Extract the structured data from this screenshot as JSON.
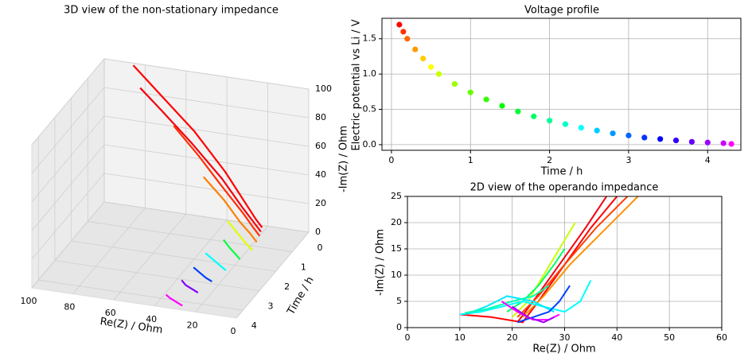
{
  "chart_data": [
    {
      "type": "line3d",
      "title": "3D view of the non-stationary impedance",
      "xlabel": "Re(Z) / Ohm",
      "ylabel": "Time / h",
      "zlabel": "-Im(Z) / Ohm",
      "xlim": [
        0,
        100
      ],
      "xticks": [
        0,
        20,
        40,
        60,
        80,
        100
      ],
      "ylim": [
        0,
        4.4
      ],
      "yticks": [
        0,
        1,
        2,
        3,
        4
      ],
      "zlim": [
        0,
        100
      ],
      "zticks": [
        0,
        20,
        40,
        60,
        80,
        100
      ],
      "series": [
        {
          "color": "#ff0000",
          "t": 0.1,
          "x": [
            22,
            25,
            30,
            40,
            55,
            70,
            85
          ],
          "z": [
            0,
            5,
            15,
            35,
            60,
            80,
            100
          ]
        },
        {
          "color": "#f20010",
          "t": 0.3,
          "x": [
            21,
            24,
            30,
            40,
            55,
            70,
            80
          ],
          "z": [
            0,
            5,
            15,
            33,
            55,
            75,
            88
          ]
        },
        {
          "color": "#ff3000",
          "t": 0.5,
          "x": [
            20,
            23,
            28,
            38,
            50,
            62
          ],
          "z": [
            0,
            5,
            14,
            30,
            50,
            68
          ]
        },
        {
          "color": "#ff8000",
          "t": 0.8,
          "x": [
            19,
            22,
            27,
            35,
            45
          ],
          "z": [
            0,
            5,
            12,
            26,
            40
          ]
        },
        {
          "color": "#e0ff00",
          "t": 1.2,
          "x": [
            18,
            21,
            25,
            30
          ],
          "z": [
            0,
            4,
            10,
            18
          ]
        },
        {
          "color": "#00ff40",
          "t": 1.7,
          "x": [
            20,
            22,
            25,
            28
          ],
          "z": [
            0,
            3,
            7,
            12
          ]
        },
        {
          "color": "#00ffff",
          "t": 2.3,
          "x": [
            22,
            24,
            28,
            32
          ],
          "z": [
            0,
            2,
            6,
            10
          ]
        },
        {
          "color": "#0040ff",
          "t": 2.9,
          "x": [
            24,
            27,
            30,
            33
          ],
          "z": [
            0,
            2,
            5,
            8
          ]
        },
        {
          "color": "#8000ff",
          "t": 3.5,
          "x": [
            26,
            29,
            32,
            34
          ],
          "z": [
            0,
            2,
            4,
            7
          ]
        },
        {
          "color": "#ff00ff",
          "t": 4.2,
          "x": [
            28,
            31,
            34,
            36
          ],
          "z": [
            0,
            2,
            4,
            6
          ]
        }
      ]
    },
    {
      "type": "scatter",
      "title": "Voltage profile",
      "xlabel": "Time / h",
      "ylabel": "Electric potential vs Li / V",
      "colormap": "hsv",
      "grid": true,
      "xlim": [
        -0.12,
        4.42
      ],
      "xticks": [
        0,
        1,
        2,
        3,
        4
      ],
      "ylim": [
        -0.08,
        1.79
      ],
      "yticks": [
        0.0,
        0.5,
        1.0,
        1.5
      ],
      "x": [
        0.1,
        0.15,
        0.2,
        0.3,
        0.4,
        0.5,
        0.6,
        0.8,
        1.0,
        1.2,
        1.4,
        1.6,
        1.8,
        2.0,
        2.2,
        2.4,
        2.6,
        2.8,
        3.0,
        3.2,
        3.4,
        3.6,
        3.8,
        4.0,
        4.2,
        4.3
      ],
      "values": [
        1.7,
        1.6,
        1.5,
        1.35,
        1.22,
        1.1,
        1.0,
        0.86,
        0.74,
        0.64,
        0.55,
        0.47,
        0.4,
        0.34,
        0.29,
        0.24,
        0.2,
        0.16,
        0.13,
        0.1,
        0.08,
        0.06,
        0.04,
        0.03,
        0.02,
        0.01
      ]
    },
    {
      "type": "line",
      "title": "2D view of the operando impedance",
      "xlabel": "Re(Z) / Ohm",
      "ylabel": "-Im(Z) / Ohm",
      "grid": true,
      "xlim": [
        0,
        60
      ],
      "xticks": [
        0,
        10,
        20,
        30,
        40,
        50,
        60
      ],
      "ylim": [
        0,
        25
      ],
      "yticks": [
        0,
        5,
        10,
        15,
        20,
        25
      ],
      "series": [
        {
          "color": "#ff0000",
          "x": [
            10,
            16,
            22,
            25,
            30,
            35,
            40
          ],
          "values": [
            2.5,
            2,
            1,
            5,
            12,
            19,
            25
          ]
        },
        {
          "color": "#f20010",
          "x": [
            21,
            24,
            29,
            34,
            38
          ],
          "values": [
            1,
            5,
            12,
            19,
            25
          ]
        },
        {
          "color": "#ff4000",
          "x": [
            21,
            25,
            30,
            36,
            42
          ],
          "values": [
            2,
            6,
            12,
            19,
            25
          ]
        },
        {
          "color": "#ff9000",
          "x": [
            22,
            26,
            31,
            37,
            44
          ],
          "values": [
            2,
            6,
            12,
            18,
            25
          ]
        },
        {
          "color": "#c8ff00",
          "x": [
            20,
            23,
            26,
            29,
            32
          ],
          "values": [
            2,
            5,
            10,
            15,
            20
          ]
        },
        {
          "color": "#00ff60",
          "x": [
            19,
            22,
            25,
            28,
            30
          ],
          "values": [
            3,
            5,
            8,
            12,
            15
          ]
        },
        {
          "color": "#00ffff",
          "x": [
            10,
            14,
            18,
            22,
            26,
            30,
            33,
            35
          ],
          "values": [
            2.5,
            3,
            4,
            5,
            4,
            3,
            5,
            9
          ]
        },
        {
          "color": "#00e8ff",
          "x": [
            11,
            15,
            19,
            24,
            28
          ],
          "values": [
            2.5,
            4,
            6,
            5,
            3
          ]
        },
        {
          "color": "#00ffb0",
          "x": [
            11,
            15,
            20,
            24,
            27
          ],
          "values": [
            2.8,
            3.5,
            5,
            6,
            8
          ]
        },
        {
          "color": "#0040ff",
          "x": [
            21,
            24,
            27,
            29,
            31
          ],
          "values": [
            1,
            2,
            3,
            5,
            8
          ]
        },
        {
          "color": "#ff00ff",
          "x": [
            18,
            21,
            24,
            27,
            29
          ],
          "values": [
            5,
            3,
            1.5,
            1.5,
            2.5
          ]
        },
        {
          "color": "#a000ff",
          "x": [
            20,
            23,
            26,
            28
          ],
          "values": [
            4,
            2,
            1,
            2
          ]
        }
      ]
    }
  ]
}
